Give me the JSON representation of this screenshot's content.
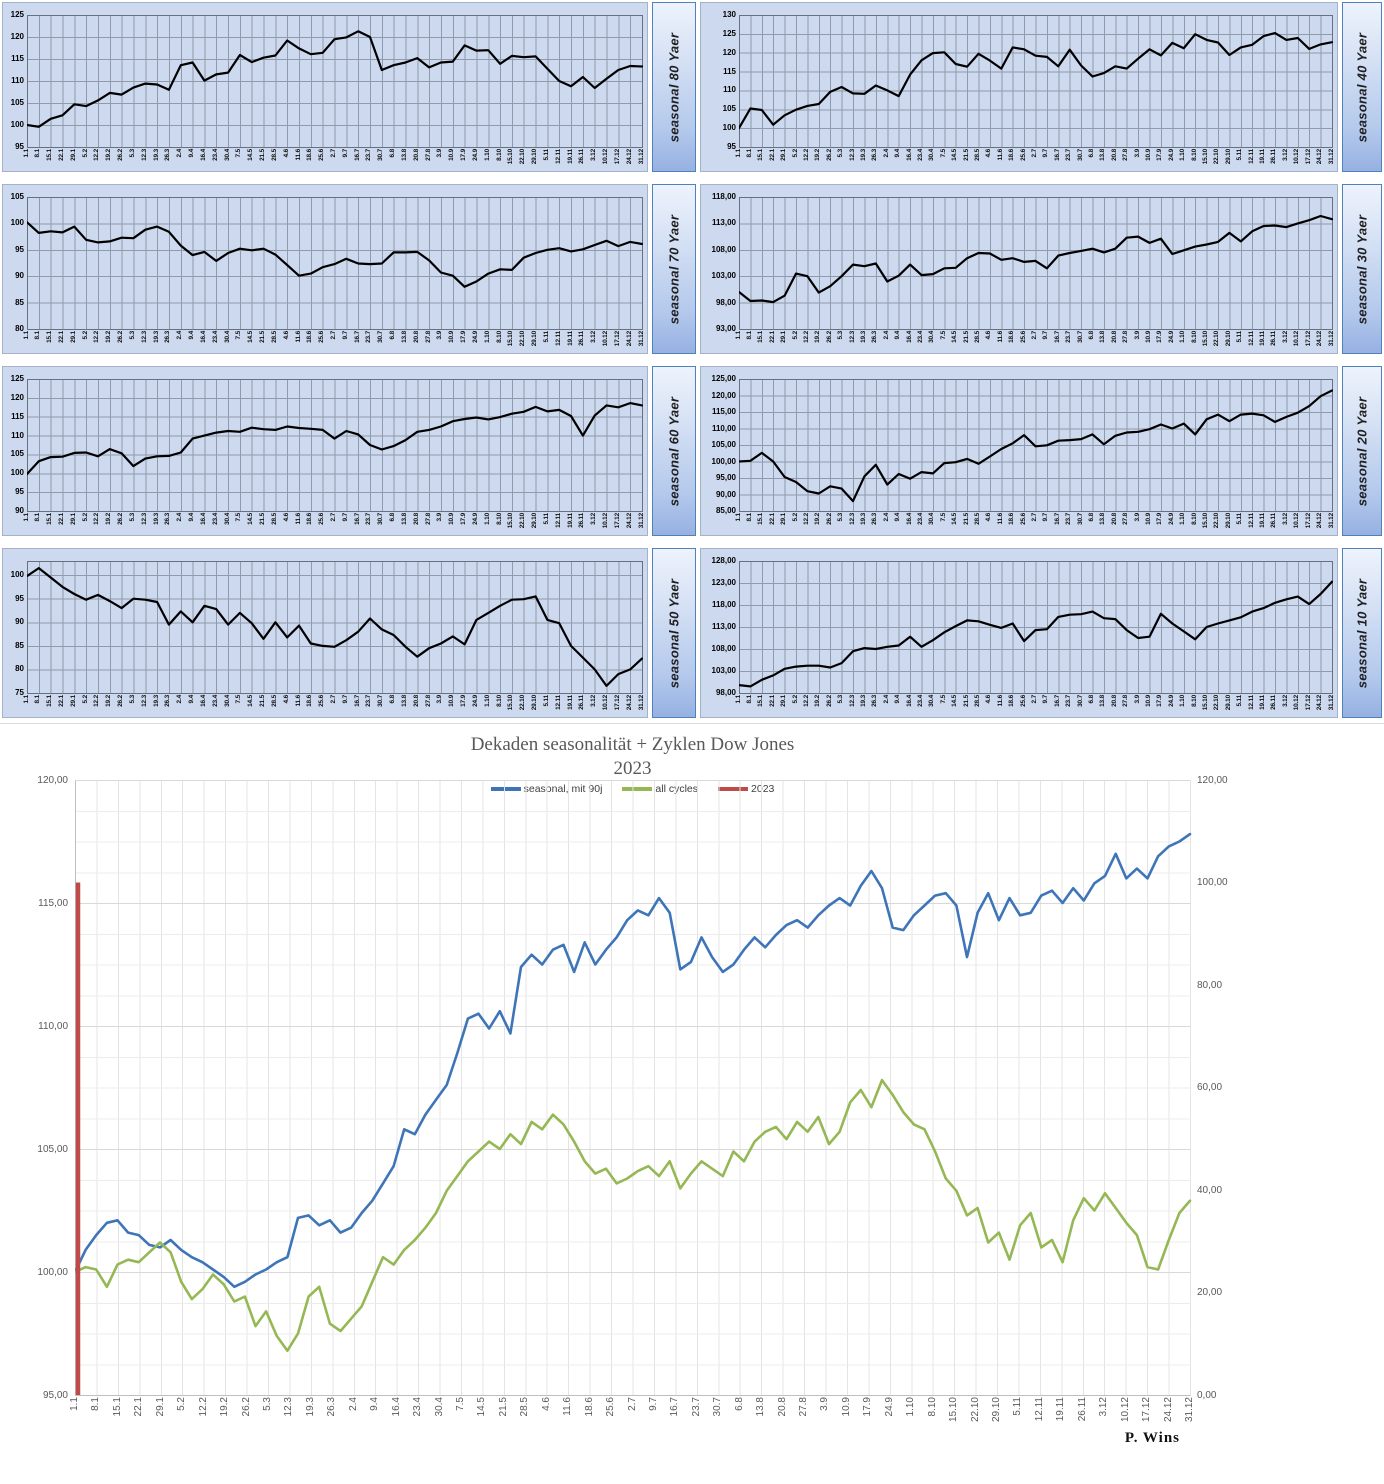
{
  "week_labels": [
    "1.1",
    "8.1",
    "15.1",
    "22.1",
    "29.1",
    "5.2",
    "12.2",
    "19.2",
    "26.2",
    "5.3",
    "12.3",
    "19.3",
    "26.3",
    "2.4",
    "9.4",
    "16.4",
    "23.4",
    "30.4",
    "7.5",
    "14.5",
    "21.5",
    "28.5",
    "4.6",
    "11.6",
    "18.6",
    "25.6",
    "2.7",
    "9.7",
    "16.7",
    "23.7",
    "30.7",
    "6.8",
    "13.8",
    "20.8",
    "27.8",
    "3.9",
    "10.9",
    "17.9",
    "24.9",
    "1.10",
    "8.10",
    "15.10",
    "22.10",
    "29.10",
    "5.11",
    "12.11",
    "19.11",
    "26.11",
    "3.12",
    "10.12",
    "17.12",
    "24.12",
    "31.12"
  ],
  "colors": {
    "small_plot_bg": "#cdd9ee",
    "small_grid": "#909aab",
    "small_plot_border": "#667083",
    "small_line": "#000000",
    "big_grid_minor": "#ececec",
    "big_grid_major": "#d9d9d9",
    "big_axis": "#bfbfbf",
    "axis_text": "#595959",
    "series_blue": "#3E74B8",
    "series_green": "#95B854",
    "series_red": "#BE4B48"
  },
  "chart_data": {
    "layout_rows": [
      [
        "s80",
        "s40"
      ],
      [
        "s70",
        "s30"
      ],
      [
        "s60",
        "s20"
      ],
      [
        "s50",
        "s10"
      ]
    ],
    "small": [
      {
        "id": "s80",
        "type": "line",
        "side_label": "seasonal 80 Yaer",
        "ymin": 95,
        "ymax": 125,
        "tick_min": 95,
        "tick_max": 125,
        "tick_step": 5,
        "decimals": 0,
        "values": [
          100.0,
          99.6,
          101.4,
          102.2,
          104.7,
          104.3,
          105.6,
          107.3,
          106.9,
          108.5,
          109.4,
          109.2,
          108.0,
          113.6,
          114.2,
          110.1,
          111.5,
          111.9,
          115.9,
          114.3,
          115.3,
          115.8,
          119.2,
          117.4,
          116.1,
          116.4,
          119.5,
          119.9,
          121.3,
          120.0,
          112.5,
          113.6,
          114.2,
          115.2,
          113.1,
          114.2,
          114.4,
          118.1,
          116.9,
          117.0,
          113.9,
          115.7,
          115.4,
          115.6,
          112.8,
          110.0,
          108.8,
          110.9,
          108.4,
          110.5,
          112.5,
          113.4,
          113.3
        ]
      },
      {
        "id": "s40",
        "type": "line",
        "side_label": "seasonal 40 Yaer",
        "ymin": 95,
        "ymax": 130,
        "tick_min": 95,
        "tick_max": 130,
        "tick_step": 5,
        "decimals": 0,
        "values": [
          100.0,
          105.2,
          104.8,
          100.9,
          103.4,
          104.9,
          105.9,
          106.4,
          109.6,
          110.9,
          109.2,
          109.1,
          111.3,
          110.0,
          108.5,
          114.2,
          118.0,
          119.9,
          120.1,
          117.0,
          116.3,
          119.7,
          117.9,
          115.8,
          121.4,
          120.9,
          119.2,
          118.9,
          116.4,
          120.8,
          116.6,
          113.7,
          114.6,
          116.4,
          115.8,
          118.4,
          120.9,
          119.3,
          122.6,
          121.2,
          124.9,
          123.4,
          122.7,
          119.4,
          121.4,
          122.1,
          124.4,
          125.2,
          123.4,
          123.9,
          121.0,
          122.2,
          122.8
        ]
      },
      {
        "id": "s70",
        "type": "line",
        "side_label": "seasonal 70 Yaer",
        "ymin": 80,
        "ymax": 105,
        "tick_min": 80,
        "tick_max": 105,
        "tick_step": 5,
        "decimals": 0,
        "values": [
          100.2,
          98.2,
          98.5,
          98.3,
          99.4,
          96.9,
          96.4,
          96.6,
          97.3,
          97.2,
          98.8,
          99.4,
          98.4,
          95.8,
          94.0,
          94.6,
          92.9,
          94.4,
          95.2,
          94.9,
          95.2,
          94.1,
          92.1,
          90.1,
          90.5,
          91.7,
          92.3,
          93.3,
          92.4,
          92.3,
          92.4,
          94.5,
          94.5,
          94.6,
          93.0,
          90.7,
          90.1,
          88.0,
          89.0,
          90.5,
          91.3,
          91.2,
          93.5,
          94.4,
          95.0,
          95.3,
          94.7,
          95.1,
          95.9,
          96.7,
          95.7,
          96.5,
          96.1
        ]
      },
      {
        "id": "s30",
        "type": "line",
        "side_label": "seasonal 30 Yaer",
        "ymin": 93,
        "ymax": 118,
        "tick_min": 93,
        "tick_max": 118,
        "tick_step": 5,
        "decimals": 2,
        "values": [
          100.0,
          98.3,
          98.4,
          98.1,
          99.3,
          103.5,
          103.0,
          99.9,
          101.1,
          103.0,
          105.2,
          104.9,
          105.4,
          102.0,
          103.1,
          105.2,
          103.2,
          103.4,
          104.5,
          104.6,
          106.4,
          107.4,
          107.3,
          106.1,
          106.4,
          105.7,
          105.9,
          104.5,
          106.9,
          107.4,
          107.8,
          108.2,
          107.5,
          108.2,
          110.3,
          110.5,
          109.3,
          110.1,
          107.2,
          107.9,
          108.6,
          109.0,
          109.5,
          111.2,
          109.6,
          111.5,
          112.5,
          112.6,
          112.3,
          113.0,
          113.6,
          114.4,
          113.8
        ]
      },
      {
        "id": "s60",
        "type": "line",
        "side_label": "seasonal 60 Yaer",
        "ymin": 90,
        "ymax": 125,
        "tick_min": 90,
        "tick_max": 125,
        "tick_step": 5,
        "decimals": 0,
        "values": [
          99.8,
          103.2,
          104.3,
          104.4,
          105.4,
          105.5,
          104.5,
          106.4,
          105.3,
          101.9,
          103.9,
          104.5,
          104.6,
          105.5,
          109.2,
          110.0,
          110.8,
          111.2,
          111.0,
          112.1,
          111.7,
          111.5,
          112.4,
          112.0,
          111.8,
          111.5,
          109.2,
          111.2,
          110.3,
          107.5,
          106.3,
          107.2,
          108.8,
          111.0,
          111.5,
          112.4,
          113.8,
          114.4,
          114.8,
          114.3,
          114.9,
          115.8,
          116.3,
          117.6,
          116.4,
          116.8,
          115.2,
          110.0,
          115.3,
          118.0,
          117.5,
          118.6,
          118.0
        ]
      },
      {
        "id": "s20",
        "type": "line",
        "side_label": "seasonal 20 Yaer",
        "ymin": 85,
        "ymax": 125,
        "tick_min": 85,
        "tick_max": 125,
        "tick_step": 5,
        "decimals": 2,
        "values": [
          100.0,
          100.2,
          102.6,
          100.0,
          95.3,
          93.8,
          91.0,
          90.3,
          92.5,
          91.8,
          88.0,
          95.5,
          99.0,
          93.0,
          96.2,
          94.8,
          96.8,
          96.4,
          99.5,
          99.8,
          100.8,
          99.3,
          101.5,
          103.8,
          105.5,
          108.0,
          104.6,
          104.9,
          106.3,
          106.5,
          106.8,
          108.2,
          105.2,
          107.8,
          108.8,
          109.0,
          109.8,
          111.2,
          110.0,
          111.5,
          108.2,
          112.8,
          114.2,
          112.2,
          114.2,
          114.5,
          114.0,
          112.0,
          113.5,
          114.8,
          116.8,
          119.8,
          121.5
        ]
      },
      {
        "id": "s50",
        "type": "line",
        "side_label": "seasonal 50 Yaer",
        "ymin": 75,
        "ymax": 103,
        "tick_min": 75,
        "tick_max": 100,
        "tick_step": 5,
        "decimals": 0,
        "values": [
          99.8,
          101.5,
          99.5,
          97.5,
          96.0,
          94.8,
          95.8,
          94.5,
          93.0,
          95.0,
          94.8,
          94.3,
          89.5,
          92.3,
          90.0,
          93.5,
          92.8,
          89.5,
          92.0,
          89.8,
          86.5,
          90.0,
          86.8,
          89.3,
          85.5,
          85.0,
          84.8,
          86.2,
          88.0,
          90.8,
          88.5,
          87.3,
          84.8,
          82.7,
          84.5,
          85.5,
          87.0,
          85.3,
          90.5,
          92.0,
          93.5,
          94.8,
          94.9,
          95.5,
          90.5,
          89.8,
          85.0,
          82.5,
          80.0,
          76.5,
          79.0,
          80.0,
          82.3
        ]
      },
      {
        "id": "s10",
        "type": "line",
        "side_label": "seasonal 10 Yaer",
        "ymin": 98,
        "ymax": 128,
        "tick_min": 98,
        "tick_max": 128,
        "tick_step": 5,
        "decimals": 2,
        "values": [
          99.8,
          99.5,
          101.0,
          102.0,
          103.5,
          104.0,
          104.2,
          104.2,
          103.8,
          104.8,
          107.5,
          108.2,
          108.0,
          108.5,
          108.8,
          110.8,
          108.5,
          110.0,
          111.8,
          113.2,
          114.5,
          114.3,
          113.5,
          112.8,
          113.8,
          109.8,
          112.3,
          112.5,
          115.3,
          115.8,
          115.9,
          116.5,
          115.0,
          114.8,
          112.3,
          110.5,
          110.8,
          116.0,
          113.8,
          112.0,
          110.2,
          113.0,
          113.8,
          114.5,
          115.2,
          116.5,
          117.3,
          118.5,
          119.3,
          119.9,
          118.2,
          120.5,
          123.3
        ]
      }
    ],
    "main": {
      "type": "line",
      "title": "Dekaden seasonalität + Zyklen Dow Jones",
      "subtitle": "2023",
      "signature": "P. Wins",
      "left_axis": {
        "min": 95,
        "max": 120,
        "step": 5,
        "decimals": 2
      },
      "right_axis": {
        "min": 0,
        "max": 120,
        "step": 20,
        "decimals": 2
      },
      "grid": true,
      "legend_position": "top",
      "points_per_week": 2,
      "series": [
        {
          "name": "seasonal, mit 90j",
          "color": "#3E74B8",
          "axis": "left",
          "values": [
            100.0,
            100.9,
            101.5,
            102.0,
            102.1,
            101.6,
            101.5,
            101.1,
            101.0,
            101.3,
            100.9,
            100.6,
            100.4,
            100.1,
            99.8,
            99.4,
            99.6,
            99.9,
            100.1,
            100.4,
            100.6,
            102.2,
            102.3,
            101.9,
            102.1,
            101.6,
            101.8,
            102.4,
            102.9,
            103.6,
            104.3,
            105.8,
            105.6,
            106.4,
            107.0,
            107.6,
            108.9,
            110.3,
            110.5,
            109.9,
            110.6,
            109.7,
            112.4,
            112.9,
            112.5,
            113.1,
            113.3,
            112.2,
            113.4,
            112.5,
            113.1,
            113.6,
            114.3,
            114.7,
            114.5,
            115.2,
            114.6,
            112.3,
            112.6,
            113.6,
            112.8,
            112.2,
            112.5,
            113.1,
            113.6,
            113.2,
            113.7,
            114.1,
            114.3,
            114.0,
            114.5,
            114.9,
            115.2,
            114.9,
            115.7,
            116.3,
            115.6,
            114.0,
            113.9,
            114.5,
            114.9,
            115.3,
            115.4,
            114.9,
            112.8,
            114.6,
            115.4,
            114.3,
            115.2,
            114.5,
            114.6,
            115.3,
            115.5,
            115.0,
            115.6,
            115.1,
            115.8,
            116.1,
            117.0,
            116.0,
            116.4,
            116.0,
            116.9,
            117.3,
            117.5,
            117.8
          ]
        },
        {
          "name": "all cycles",
          "color": "#95B854",
          "axis": "left",
          "values": [
            100.0,
            100.2,
            100.1,
            99.4,
            100.3,
            100.5,
            100.4,
            100.8,
            101.2,
            100.8,
            99.6,
            98.9,
            99.3,
            99.9,
            99.5,
            98.8,
            99.0,
            97.8,
            98.4,
            97.4,
            96.8,
            97.5,
            99.0,
            99.4,
            97.9,
            97.6,
            98.1,
            98.6,
            99.6,
            100.6,
            100.3,
            100.9,
            101.3,
            101.8,
            102.4,
            103.3,
            103.9,
            104.5,
            104.9,
            105.3,
            105.0,
            105.6,
            105.2,
            106.1,
            105.8,
            106.4,
            106.0,
            105.3,
            104.5,
            104.0,
            104.2,
            103.6,
            103.8,
            104.1,
            104.3,
            103.9,
            104.5,
            103.4,
            104.0,
            104.5,
            104.2,
            103.9,
            104.9,
            104.5,
            105.3,
            105.7,
            105.9,
            105.4,
            106.1,
            105.7,
            106.3,
            105.2,
            105.7,
            106.9,
            107.4,
            106.7,
            107.8,
            107.2,
            106.5,
            106.0,
            105.8,
            104.9,
            103.8,
            103.3,
            102.3,
            102.6,
            101.2,
            101.6,
            100.5,
            101.9,
            102.4,
            101.0,
            101.3,
            100.4,
            102.1,
            103.0,
            102.5,
            103.2,
            102.6,
            102.0,
            101.5,
            100.2,
            100.1,
            101.3,
            102.4,
            102.9
          ]
        },
        {
          "name": "2023",
          "color": "#BE4B48",
          "axis": "right",
          "draw": "vertical-segment",
          "x_index": 0,
          "from": 0,
          "to": 100
        }
      ]
    }
  }
}
